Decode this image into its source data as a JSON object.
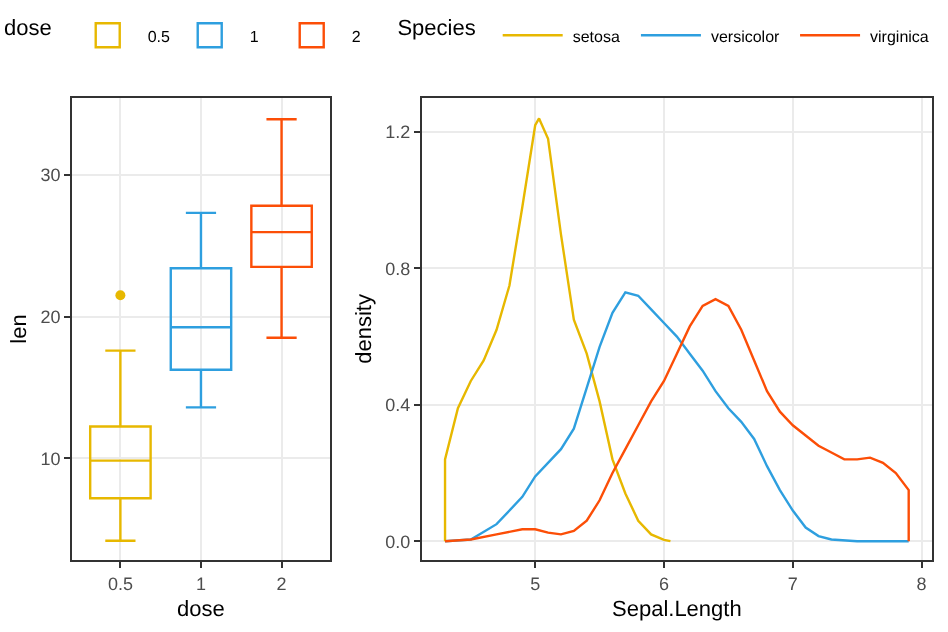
{
  "chart_data": [
    {
      "type": "box",
      "categories": [
        "0.5",
        "1",
        "2"
      ],
      "xlabel": "dose",
      "ylabel": "len",
      "legend_title": "dose",
      "legend": "top",
      "grid": true,
      "ylim": [
        2.85,
        35.4
      ],
      "yticks": [
        10,
        20,
        30
      ],
      "series": [
        {
          "name": "0.5",
          "color": "#e7b800",
          "boxes": [
            {
              "low": 4.2,
              "q1": 7.2,
              "median": 9.85,
              "q3": 12.25,
              "high": 17.6,
              "outliers": [
                21.5
              ]
            },
            null,
            null
          ]
        },
        {
          "name": "1",
          "color": "#2e9fdf",
          "boxes": [
            null,
            {
              "low": 13.6,
              "q1": 16.25,
              "median": 19.25,
              "q3": 23.4,
              "high": 27.3
            },
            null
          ]
        },
        {
          "name": "2",
          "color": "#fc4e07",
          "boxes": [
            null,
            null,
            {
              "low": 18.5,
              "q1": 23.5,
              "median": 25.95,
              "q3": 27.8,
              "high": 33.9
            }
          ]
        }
      ]
    },
    {
      "type": "line",
      "xlabel": "Sepal.Length",
      "ylabel": "density",
      "legend_title": "Species",
      "legend": "top",
      "grid": true,
      "marker": "none",
      "line_style": "solid",
      "xlim": [
        4.12,
        8.08
      ],
      "xticks": [
        5,
        6,
        7,
        8
      ],
      "ylim": [
        -0.055,
        1.3
      ],
      "yticks": [
        {
          "value": 0,
          "label": "0.0"
        },
        0.4,
        0.8,
        1.2
      ],
      "series": [
        {
          "name": "setosa",
          "color": "#e7b800",
          "x": [
            4.3,
            4.3,
            4.4,
            4.5,
            4.6,
            4.7,
            4.8,
            4.9,
            5.0,
            5.03,
            5.1,
            5.2,
            5.3,
            5.4,
            5.5,
            5.6,
            5.7,
            5.8,
            5.9,
            6.0,
            6.05
          ],
          "values": [
            0,
            0.24,
            0.39,
            0.47,
            0.53,
            0.62,
            0.75,
            0.98,
            1.22,
            1.24,
            1.18,
            0.9,
            0.65,
            0.55,
            0.41,
            0.24,
            0.14,
            0.06,
            0.02,
            0.004,
            0
          ]
        },
        {
          "name": "versicolor",
          "color": "#2e9fdf",
          "x": [
            4.3,
            4.5,
            4.7,
            4.9,
            5.0,
            5.2,
            5.3,
            5.4,
            5.5,
            5.6,
            5.7,
            5.8,
            5.9,
            6.0,
            6.1,
            6.2,
            6.3,
            6.4,
            6.5,
            6.6,
            6.7,
            6.8,
            6.9,
            7.0,
            7.1,
            7.2,
            7.3,
            7.5,
            7.9
          ],
          "values": [
            0,
            0.005,
            0.05,
            0.13,
            0.19,
            0.27,
            0.33,
            0.45,
            0.57,
            0.67,
            0.73,
            0.72,
            0.68,
            0.64,
            0.6,
            0.55,
            0.5,
            0.44,
            0.39,
            0.35,
            0.3,
            0.22,
            0.15,
            0.09,
            0.04,
            0.015,
            0.005,
            0,
            0
          ]
        },
        {
          "name": "virginica",
          "color": "#fc4e07",
          "x": [
            4.3,
            4.5,
            4.7,
            4.9,
            5.0,
            5.1,
            5.2,
            5.3,
            5.4,
            5.5,
            5.6,
            5.7,
            5.8,
            5.9,
            6.0,
            6.1,
            6.2,
            6.3,
            6.4,
            6.5,
            6.6,
            6.7,
            6.8,
            6.9,
            7.0,
            7.1,
            7.2,
            7.3,
            7.4,
            7.5,
            7.6,
            7.7,
            7.8,
            7.9,
            7.9
          ],
          "values": [
            0,
            0.005,
            0.02,
            0.035,
            0.035,
            0.025,
            0.02,
            0.03,
            0.06,
            0.12,
            0.2,
            0.27,
            0.34,
            0.41,
            0.47,
            0.55,
            0.63,
            0.69,
            0.71,
            0.69,
            0.62,
            0.53,
            0.44,
            0.38,
            0.34,
            0.31,
            0.28,
            0.26,
            0.24,
            0.24,
            0.245,
            0.23,
            0.2,
            0.15,
            0
          ]
        }
      ]
    }
  ]
}
